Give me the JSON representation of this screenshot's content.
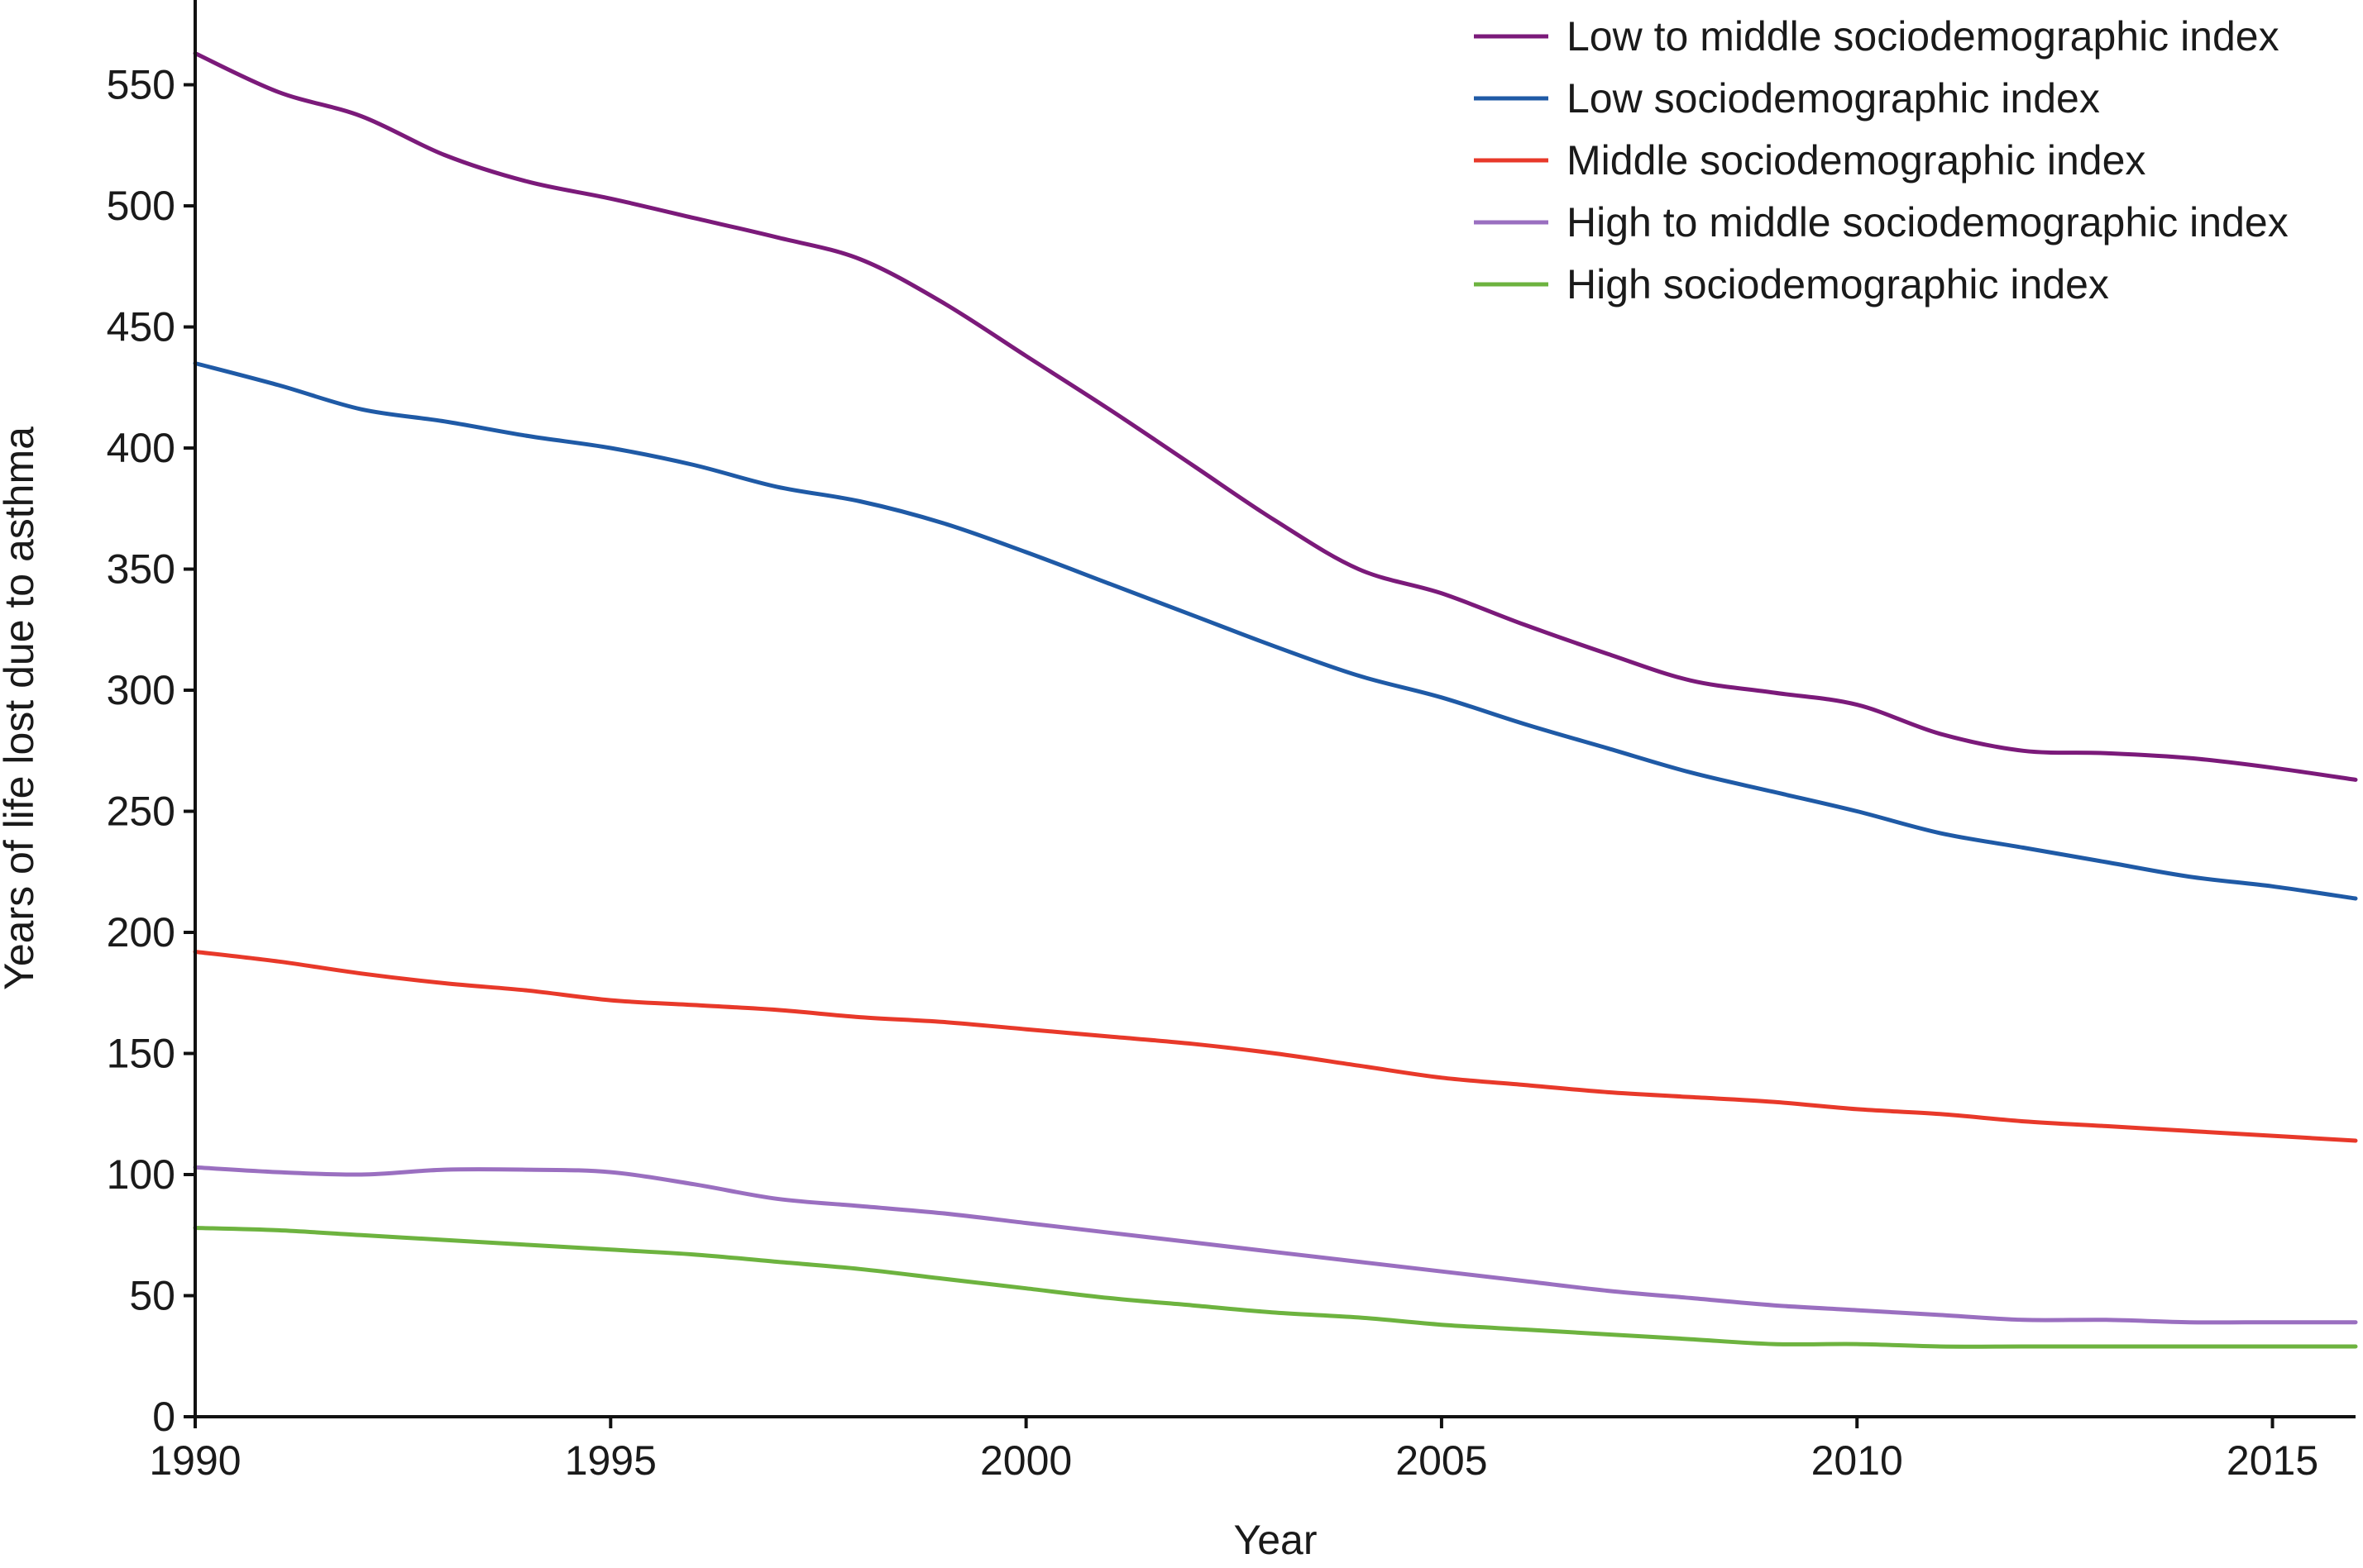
{
  "chart_data": {
    "type": "line",
    "title": "",
    "xlabel": "Year",
    "ylabel": "Years of life lost due to asthma",
    "xlim": [
      1990,
      2016
    ],
    "ylim": [
      0,
      585
    ],
    "xticks": [
      1990,
      1995,
      2000,
      2005,
      2010,
      2015
    ],
    "yticks": [
      0,
      50,
      100,
      150,
      200,
      250,
      300,
      350,
      400,
      450,
      500,
      550
    ],
    "grid": false,
    "legend_position": "top-right",
    "series": [
      {
        "name": "Low to middle sociodemographic index",
        "color": "#7b1a7a",
        "x": [
          1990,
          1991,
          1992,
          1993,
          1994,
          1995,
          1996,
          1997,
          1998,
          1999,
          2000,
          2001,
          2002,
          2003,
          2004,
          2005,
          2006,
          2007,
          2008,
          2009,
          2010,
          2011,
          2012,
          2013,
          2014,
          2015,
          2016
        ],
        "values": [
          563,
          547,
          537,
          521,
          510,
          503,
          495,
          487,
          478,
          460,
          438,
          416,
          393,
          370,
          350,
          340,
          327,
          315,
          304,
          299,
          294,
          282,
          275,
          274,
          272,
          268,
          263
        ]
      },
      {
        "name": "Low sociodemographic index",
        "color": "#1f5aa6",
        "x": [
          1990,
          1991,
          1992,
          1993,
          1994,
          1995,
          1996,
          1997,
          1998,
          1999,
          2000,
          2001,
          2002,
          2003,
          2004,
          2005,
          2006,
          2007,
          2008,
          2009,
          2010,
          2011,
          2012,
          2013,
          2014,
          2015,
          2016
        ],
        "values": [
          435,
          426,
          416,
          411,
          405,
          400,
          393,
          384,
          378,
          369,
          357,
          344,
          331,
          318,
          306,
          297,
          286,
          276,
          266,
          258,
          250,
          241,
          235,
          229,
          223,
          219,
          214
        ]
      },
      {
        "name": "Middle sociodemographic index",
        "color": "#e8392a",
        "x": [
          1990,
          1991,
          1992,
          1993,
          1994,
          1995,
          1996,
          1997,
          1998,
          1999,
          2000,
          2001,
          2002,
          2003,
          2004,
          2005,
          2006,
          2007,
          2008,
          2009,
          2010,
          2011,
          2012,
          2013,
          2014,
          2015,
          2016
        ],
        "values": [
          192,
          188,
          183,
          179,
          176,
          172,
          170,
          168,
          165,
          163,
          160,
          157,
          154,
          150,
          145,
          140,
          137,
          134,
          132,
          130,
          127,
          125,
          122,
          120,
          118,
          116,
          114
        ]
      },
      {
        "name": "High to middle sociodemographic index",
        "color": "#9a6fc0",
        "x": [
          1990,
          1991,
          1992,
          1993,
          1994,
          1995,
          1996,
          1997,
          1998,
          1999,
          2000,
          2001,
          2002,
          2003,
          2004,
          2005,
          2006,
          2007,
          2008,
          2009,
          2010,
          2011,
          2012,
          2013,
          2014,
          2015,
          2016
        ],
        "values": [
          103,
          101,
          100,
          102,
          102,
          101,
          96,
          90,
          87,
          84,
          80,
          76,
          72,
          68,
          64,
          60,
          56,
          52,
          49,
          46,
          44,
          42,
          40,
          40,
          39,
          39,
          39
        ]
      },
      {
        "name": "High sociodemographic index",
        "color": "#6db33f",
        "x": [
          1990,
          1991,
          1992,
          1993,
          1994,
          1995,
          1996,
          1997,
          1998,
          1999,
          2000,
          2001,
          2002,
          2003,
          2004,
          2005,
          2006,
          2007,
          2008,
          2009,
          2010,
          2011,
          2012,
          2013,
          2014,
          2015,
          2016
        ],
        "values": [
          78,
          77,
          75,
          73,
          71,
          69,
          67,
          64,
          61,
          57,
          53,
          49,
          46,
          43,
          41,
          38,
          36,
          34,
          32,
          30,
          30,
          29,
          29,
          29,
          29,
          29,
          29
        ]
      }
    ]
  }
}
